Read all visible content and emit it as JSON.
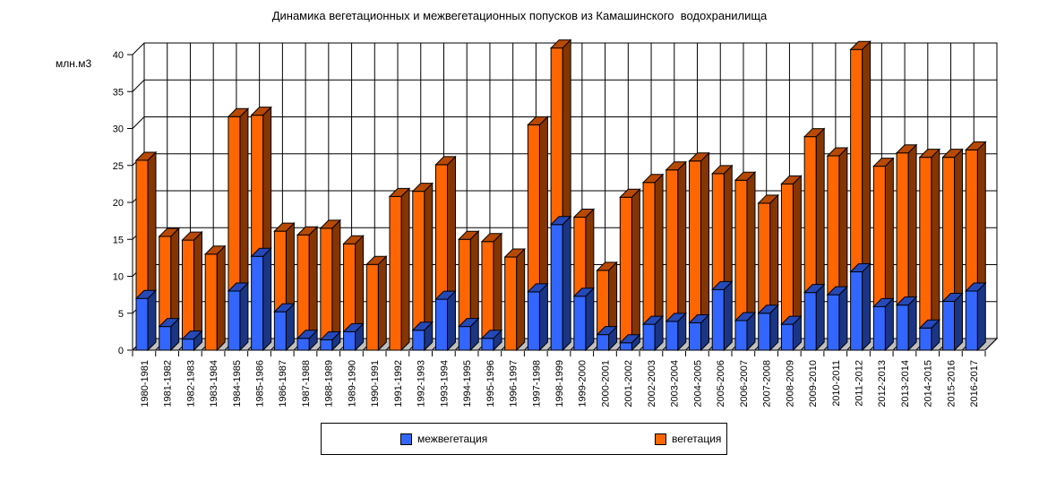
{
  "chart_data": {
    "type": "bar",
    "stacked": true,
    "title": "Динамика вегетационных и межвегетационных попусков из Камашинского  водохранилища",
    "ylabel": "млн.м3",
    "xlabel": "",
    "ylim": [
      0,
      40
    ],
    "ytick_step": 5,
    "grid": true,
    "legend_position": "bottom",
    "categories": [
      "1980-1981",
      "1981-1982",
      "1982-1983",
      "1983-1984",
      "1984-1985",
      "1985-1986",
      "1986-1987",
      "1987-1988",
      "1988-1989",
      "1989-1990",
      "1990-1991",
      "1991-1992",
      "1992-1993",
      "1993-1994",
      "1994-1995",
      "1995-1996",
      "1996-1997",
      "1997-1998",
      "1998-1999",
      "1999-2000",
      "2000-2001",
      "2001-2002",
      "2002-2003",
      "2003-2004",
      "2004-2005",
      "2005-2006",
      "2006-2007",
      "2007-2008",
      "2008-2009",
      "2009-2010",
      "2010-2011",
      "2011-2012",
      "2012-2013",
      "2013-2014",
      "2014-2015",
      "2015-2016",
      "2016-2017"
    ],
    "series": [
      {
        "name": "межвегетация",
        "color": "#3366FF",
        "values": [
          7.0,
          3.2,
          1.5,
          0,
          8.0,
          12.7,
          5.2,
          1.6,
          1.4,
          2.5,
          0,
          0,
          2.7,
          6.9,
          3.2,
          1.6,
          0,
          7.9,
          17.0,
          7.3,
          2.1,
          1.0,
          3.5,
          3.9,
          3.7,
          8.2,
          4.0,
          5.0,
          3.5,
          7.8,
          7.5,
          10.6,
          5.9,
          6.1,
          3.0,
          6.6,
          8.0
        ]
      },
      {
        "name": "вегетация",
        "color": "#FF6600",
        "values": [
          18.7,
          12.2,
          13.4,
          13.0,
          23.6,
          19.1,
          10.9,
          14.0,
          15.1,
          11.9,
          11.6,
          20.8,
          18.8,
          18.2,
          11.8,
          13.1,
          12.6,
          22.6,
          23.9,
          10.7,
          8.7,
          19.7,
          19.2,
          20.5,
          21.9,
          15.7,
          19.0,
          14.9,
          19.0,
          21.1,
          18.8,
          30.1,
          19.0,
          20.6,
          23.1,
          19.5,
          19.1
        ]
      }
    ],
    "wall_color": "#FFFFFF",
    "floor_color": "#C0C0C0",
    "gridline_color": "#000000"
  }
}
